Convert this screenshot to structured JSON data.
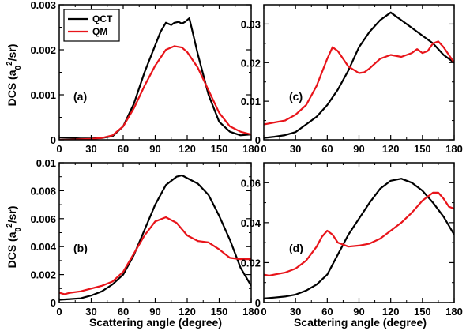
{
  "ylabel": "DCS (a",
  "ylabel_sub": "0",
  "ylabel_sup": "2",
  "ylabel_tail": "/sr)",
  "xlabel": "Scattering angle (degree)",
  "colors": {
    "QCT": "#000000",
    "QM": "#e8141a"
  },
  "chart_data": [
    {
      "type": "line",
      "panel": "(a)",
      "xlim": [
        0,
        180
      ],
      "ylim": [
        0,
        0.003
      ],
      "xticks": [
        "0",
        "30",
        "60",
        "90",
        "120",
        "150",
        "180"
      ],
      "yticks": [
        "0",
        "0.001",
        "0.002",
        "0.003"
      ],
      "yticklabels_shown": [
        true,
        true,
        true,
        true
      ],
      "legend": {
        "position": "top-left",
        "entries": [
          "QCT",
          "QM"
        ]
      },
      "series": [
        {
          "name": "QCT",
          "x": [
            0,
            10,
            20,
            30,
            40,
            50,
            60,
            70,
            80,
            90,
            95,
            100,
            105,
            108,
            112,
            115,
            118,
            122,
            125,
            130,
            140,
            150,
            160,
            170,
            180
          ],
          "y": [
            5e-05,
            4e-05,
            3e-05,
            3e-05,
            4e-05,
            8e-05,
            0.0003,
            0.0008,
            0.0015,
            0.0021,
            0.0024,
            0.0026,
            0.00255,
            0.0026,
            0.00262,
            0.00258,
            0.00262,
            0.0027,
            0.0024,
            0.0019,
            0.001,
            0.0004,
            0.00018,
            0.0001,
            0.00012
          ]
        },
        {
          "name": "QM",
          "x": [
            0,
            10,
            20,
            30,
            40,
            50,
            60,
            70,
            80,
            90,
            100,
            108,
            115,
            120,
            130,
            140,
            150,
            160,
            170,
            180
          ],
          "y": [
            0.0,
            0.0,
            1e-05,
            2e-05,
            4e-05,
            0.0001,
            0.0003,
            0.0007,
            0.0012,
            0.00165,
            0.002,
            0.00208,
            0.00205,
            0.00195,
            0.0016,
            0.0011,
            0.0006,
            0.0003,
            0.00018,
            0.00012
          ]
        }
      ]
    },
    {
      "type": "line",
      "panel": "(c)",
      "xlim": [
        0,
        180
      ],
      "ylim": [
        0,
        0.035
      ],
      "xticks": [
        "0",
        "30",
        "60",
        "90",
        "120",
        "150",
        "180"
      ],
      "yticks": [
        "0",
        "0.01",
        "0.02",
        "0.03"
      ],
      "ytick_values": [
        0,
        0.01,
        0.02,
        0.03
      ],
      "series": [
        {
          "name": "QCT",
          "x": [
            0,
            10,
            20,
            30,
            40,
            50,
            60,
            70,
            80,
            90,
            100,
            110,
            115,
            120,
            125,
            130,
            140,
            150,
            160,
            170,
            180
          ],
          "y": [
            0.0005,
            0.0008,
            0.0012,
            0.002,
            0.004,
            0.006,
            0.009,
            0.013,
            0.018,
            0.024,
            0.028,
            0.031,
            0.032,
            0.033,
            0.032,
            0.031,
            0.029,
            0.027,
            0.025,
            0.022,
            0.02
          ]
        },
        {
          "name": "QM",
          "x": [
            0,
            10,
            20,
            30,
            40,
            50,
            60,
            65,
            70,
            80,
            90,
            95,
            100,
            110,
            120,
            130,
            140,
            145,
            150,
            155,
            160,
            165,
            170,
            175,
            180
          ],
          "y": [
            0.004,
            0.0045,
            0.005,
            0.0065,
            0.009,
            0.014,
            0.021,
            0.024,
            0.023,
            0.019,
            0.0173,
            0.0175,
            0.0185,
            0.021,
            0.022,
            0.0215,
            0.0225,
            0.0235,
            0.0225,
            0.023,
            0.025,
            0.0255,
            0.024,
            0.022,
            0.02
          ]
        }
      ]
    },
    {
      "type": "line",
      "panel": "(b)",
      "xlim": [
        0,
        180
      ],
      "ylim": [
        0,
        0.01
      ],
      "xticks": [
        "0",
        "30",
        "60",
        "90",
        "120",
        "150",
        "180"
      ],
      "yticks": [
        "0",
        "0.002",
        "0.004",
        "0.006",
        "0.008",
        "0.01"
      ],
      "ytick_values": [
        0,
        0.002,
        0.004,
        0.006,
        0.008,
        0.01
      ],
      "series": [
        {
          "name": "QCT",
          "x": [
            0,
            10,
            20,
            30,
            40,
            50,
            60,
            70,
            80,
            90,
            100,
            110,
            115,
            120,
            130,
            140,
            150,
            160,
            170,
            180
          ],
          "y": [
            0.0002,
            0.00025,
            0.0003,
            0.0005,
            0.0008,
            0.0013,
            0.002,
            0.0034,
            0.0052,
            0.007,
            0.0084,
            0.009,
            0.0091,
            0.0089,
            0.0085,
            0.0077,
            0.0062,
            0.0045,
            0.0025,
            0.0012
          ]
        },
        {
          "name": "QM",
          "x": [
            0,
            5,
            10,
            20,
            30,
            40,
            50,
            60,
            70,
            80,
            90,
            100,
            110,
            120,
            130,
            140,
            150,
            160,
            170,
            180
          ],
          "y": [
            0.0007,
            0.0006,
            0.0007,
            0.0008,
            0.001,
            0.0012,
            0.0015,
            0.0022,
            0.0035,
            0.0048,
            0.0058,
            0.0061,
            0.0057,
            0.0048,
            0.0044,
            0.0043,
            0.0038,
            0.0032,
            0.0031,
            0.0031
          ]
        }
      ]
    },
    {
      "type": "line",
      "panel": "(d)",
      "xlim": [
        0,
        180
      ],
      "ylim": [
        0,
        0.07
      ],
      "xticks": [
        "0",
        "30",
        "60",
        "90",
        "120",
        "150",
        "180"
      ],
      "yticks": [
        "0",
        "0.02",
        "0.04",
        "0.06"
      ],
      "ytick_values": [
        0,
        0.02,
        0.04,
        0.06
      ],
      "series": [
        {
          "name": "QCT",
          "x": [
            0,
            10,
            20,
            30,
            40,
            50,
            60,
            70,
            80,
            90,
            100,
            110,
            120,
            130,
            140,
            150,
            160,
            170,
            180
          ],
          "y": [
            0.002,
            0.0025,
            0.003,
            0.004,
            0.006,
            0.009,
            0.014,
            0.024,
            0.034,
            0.042,
            0.05,
            0.057,
            0.061,
            0.062,
            0.06,
            0.056,
            0.05,
            0.043,
            0.034
          ]
        },
        {
          "name": "QM",
          "x": [
            0,
            5,
            10,
            20,
            30,
            40,
            50,
            55,
            60,
            65,
            70,
            80,
            90,
            100,
            110,
            120,
            130,
            140,
            150,
            160,
            165,
            170,
            175,
            180
          ],
          "y": [
            0.014,
            0.0135,
            0.014,
            0.015,
            0.017,
            0.021,
            0.028,
            0.033,
            0.036,
            0.034,
            0.03,
            0.028,
            0.0285,
            0.0295,
            0.032,
            0.036,
            0.04,
            0.045,
            0.051,
            0.055,
            0.055,
            0.052,
            0.048,
            0.047
          ]
        }
      ]
    }
  ]
}
